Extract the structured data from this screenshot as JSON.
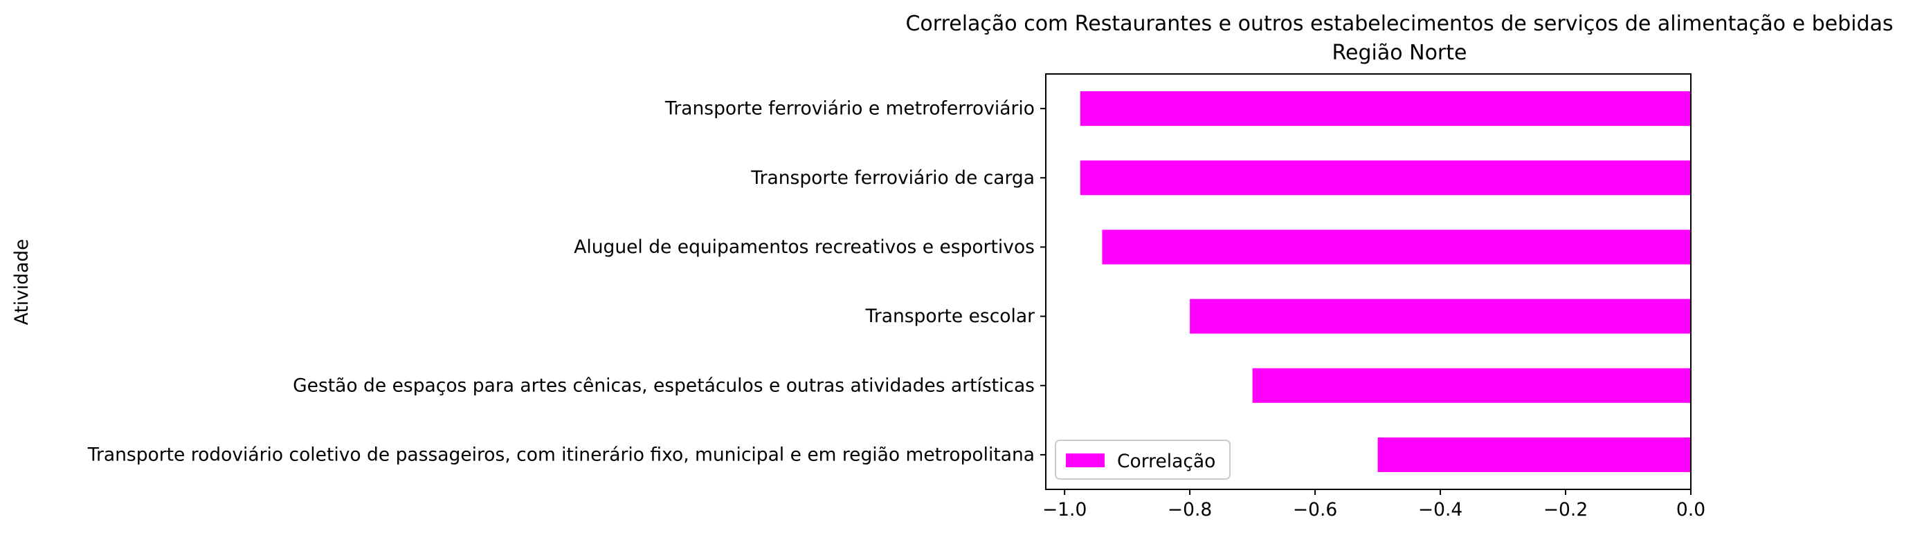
{
  "chart_data": {
    "type": "bar",
    "orientation": "horizontal",
    "title": "Correlação com Restaurantes e outros estabelecimentos de serviços de alimentação e bebidas",
    "subtitle": "Região Norte",
    "xlabel": "",
    "ylabel": "Atividade",
    "xlim": [
      -1.03,
      0.0
    ],
    "xticks": [
      -1.0,
      -0.8,
      -0.6,
      -0.4,
      -0.2,
      0.0
    ],
    "xtick_labels": [
      "−1.0",
      "−0.8",
      "−0.6",
      "−0.4",
      "−0.2",
      "0.0"
    ],
    "grid": false,
    "legend_position": "lower-left",
    "bar_color": "#ff00ff",
    "categories": [
      "Transporte ferroviário e metroferroviário",
      "Transporte ferroviário de carga",
      "Aluguel de equipamentos recreativos e esportivos",
      "Transporte escolar",
      "Gestão de espaços para artes cênicas, espetáculos e outras atividades artísticas",
      "Transporte rodoviário coletivo de passageiros, com itinerário fixo, municipal e em região metropolitana"
    ],
    "series": [
      {
        "name": "Correlação",
        "values": [
          -0.975,
          -0.975,
          -0.94,
          -0.8,
          -0.7,
          -0.5
        ]
      }
    ]
  }
}
